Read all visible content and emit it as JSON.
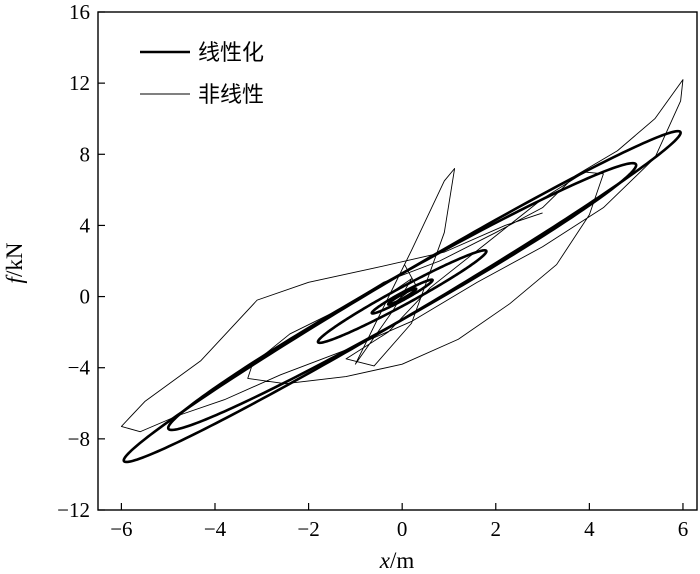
{
  "chart_data": {
    "type": "line",
    "title": "",
    "xlabel": {
      "var": "x",
      "unit": "/m"
    },
    "ylabel": {
      "var": "f",
      "unit": "/kN"
    },
    "xlim": [
      -6.5,
      6.3
    ],
    "ylim": [
      -12,
      16
    ],
    "xticks": [
      -6,
      -4,
      -2,
      0,
      2,
      4,
      6
    ],
    "yticks": [
      -12,
      -8,
      -4,
      0,
      4,
      8,
      12,
      16
    ],
    "xtick_labels": [
      "−6",
      "−4",
      "−2",
      "0",
      "2",
      "4",
      "6"
    ],
    "ytick_labels": [
      "−12",
      "−8",
      "−4",
      "0",
      "4",
      "8",
      "12",
      "16"
    ],
    "grid": false,
    "legend_position": "top-left",
    "series": [
      {
        "name": "线性化",
        "style": "thick",
        "color": "#000000",
        "loops": [
          {
            "cx": 0.0,
            "cy": 0.0,
            "ax": 5.95,
            "ay": 9.3,
            "phase_deg": 8
          },
          {
            "cx": 0.0,
            "cy": 0.0,
            "ax": 5.0,
            "ay": 7.5,
            "phase_deg": 10
          },
          {
            "cx": 0.0,
            "cy": 0.0,
            "ax": 1.8,
            "ay": 2.6,
            "phase_deg": 12
          },
          {
            "cx": 0.0,
            "cy": 0.0,
            "ax": 0.65,
            "ay": 0.95,
            "phase_deg": 14
          },
          {
            "cx": 0.0,
            "cy": 0.0,
            "ax": 0.3,
            "ay": 0.45,
            "phase_deg": 16
          }
        ]
      },
      {
        "name": "非线性",
        "style": "thin",
        "color": "#000000",
        "points": [
          [
            -0.1,
            -0.2
          ],
          [
            0.3,
            0.6
          ],
          [
            0.05,
            1.8
          ],
          [
            -0.25,
            0.2
          ],
          [
            0.2,
            1.0
          ],
          [
            -0.2,
            -0.8
          ],
          [
            -1.0,
            -3.8
          ],
          [
            0.2,
            2.6
          ],
          [
            0.9,
            6.5
          ],
          [
            1.12,
            7.2
          ],
          [
            0.9,
            3.6
          ],
          [
            0.2,
            -1.5
          ],
          [
            -0.6,
            -3.9
          ],
          [
            -1.2,
            -3.5
          ],
          [
            -0.3,
            -2.0
          ],
          [
            0.6,
            0.5
          ],
          [
            1.8,
            3.0
          ],
          [
            3.0,
            5.5
          ],
          [
            3.9,
            7.0
          ],
          [
            4.3,
            6.9
          ],
          [
            4.0,
            4.6
          ],
          [
            3.3,
            1.8
          ],
          [
            2.3,
            -0.4
          ],
          [
            1.2,
            -2.4
          ],
          [
            0.0,
            -3.8
          ],
          [
            -1.2,
            -4.5
          ],
          [
            -2.5,
            -4.9
          ],
          [
            -3.3,
            -4.6
          ],
          [
            -3.2,
            -3.8
          ],
          [
            -2.4,
            -2.1
          ],
          [
            -1.4,
            -0.8
          ],
          [
            -0.4,
            0.8
          ],
          [
            0.8,
            2.0
          ],
          [
            2.0,
            3.6
          ],
          [
            3.0,
            5.0
          ],
          [
            3.7,
            6.8
          ],
          [
            4.6,
            8.2
          ],
          [
            5.4,
            10.0
          ],
          [
            6.0,
            12.2
          ],
          [
            5.95,
            11.0
          ],
          [
            5.4,
            7.8
          ],
          [
            4.3,
            5.0
          ],
          [
            3.0,
            2.8
          ],
          [
            1.6,
            0.8
          ],
          [
            0.2,
            -1.4
          ],
          [
            -1.2,
            -3.0
          ],
          [
            -2.6,
            -4.4
          ],
          [
            -3.8,
            -5.8
          ],
          [
            -4.8,
            -6.7
          ],
          [
            -5.6,
            -7.6
          ],
          [
            -6.0,
            -7.3
          ],
          [
            -5.5,
            -5.9
          ],
          [
            -4.3,
            -3.6
          ],
          [
            -3.1,
            -0.2
          ],
          [
            -2.0,
            0.8
          ],
          [
            -0.6,
            1.6
          ],
          [
            0.9,
            2.5
          ],
          [
            2.2,
            4.0
          ],
          [
            3.0,
            4.7
          ]
        ]
      }
    ]
  }
}
